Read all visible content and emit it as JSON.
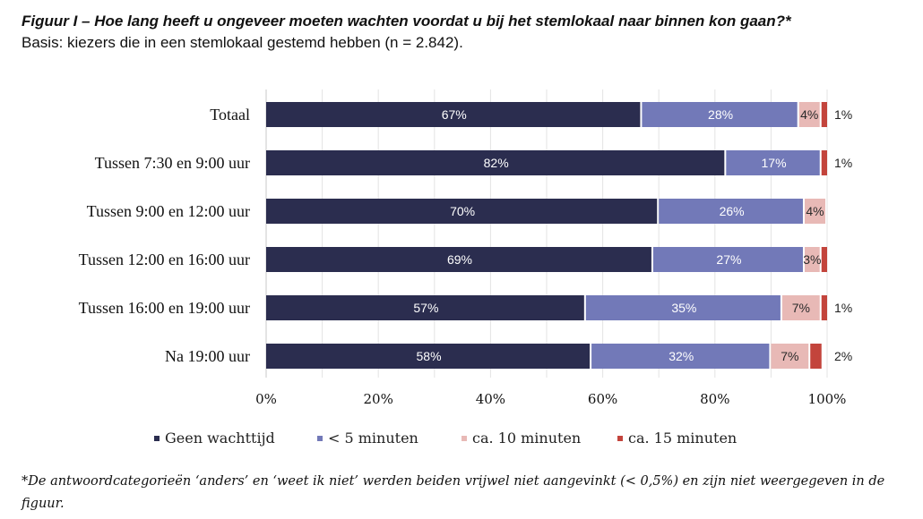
{
  "header": {
    "title": "Figuur I – Hoe lang heeft u ongeveer moeten wachten voordat u bij het stemlokaal naar binnen kon gaan?*",
    "subtitle": "Basis: kiezers die in een stemlokaal gestemd hebben (n = 2.842)."
  },
  "footnote": "*De antwoordcategorieën ‘anders’ en ‘weet ik niet’ werden beiden vrijwel niet aangevinkt (< 0,5%) en zijn niet weergegeven in de figuur.",
  "chart_data": {
    "type": "bar",
    "orientation": "horizontal",
    "stacked": true,
    "categories": [
      "Totaal",
      "Tussen 7:30 en 9:00 uur",
      "Tussen 9:00 en 12:00 uur",
      "Tussen 12:00 en 16:00 uur",
      "Tussen 16:00 en 19:00 uur",
      "Na 19:00 uur"
    ],
    "series": [
      {
        "name": "Geen wachttijd",
        "color": "#2b2d4f",
        "values": [
          67,
          82,
          70,
          69,
          57,
          58
        ],
        "labels": [
          "67%",
          "82%",
          "70%",
          "69%",
          "57%",
          "58%"
        ]
      },
      {
        "name": "< 5 minuten",
        "color": "#7279b8",
        "values": [
          28,
          17,
          26,
          27,
          35,
          32
        ],
        "labels": [
          "28%",
          "17%",
          "26%",
          "27%",
          "35%",
          "32%"
        ]
      },
      {
        "name": "ca. 10 minuten",
        "color": "#e8b9b6",
        "values": [
          4,
          0,
          4,
          3,
          7,
          7
        ],
        "labels": [
          "4%",
          "",
          "4%",
          "3%",
          "7%",
          "7%"
        ]
      },
      {
        "name": "ca. 15 minuten",
        "color": "#c3443c",
        "values": [
          1,
          1,
          0,
          1,
          1,
          2
        ],
        "labels": [
          "1%",
          "1%",
          "",
          "",
          "1%",
          "2%"
        ]
      }
    ],
    "xlim": [
      0,
      100
    ],
    "xticks": [
      "0%",
      "20%",
      "40%",
      "60%",
      "80%",
      "100%"
    ],
    "grid": true,
    "legend_position": "bottom"
  }
}
